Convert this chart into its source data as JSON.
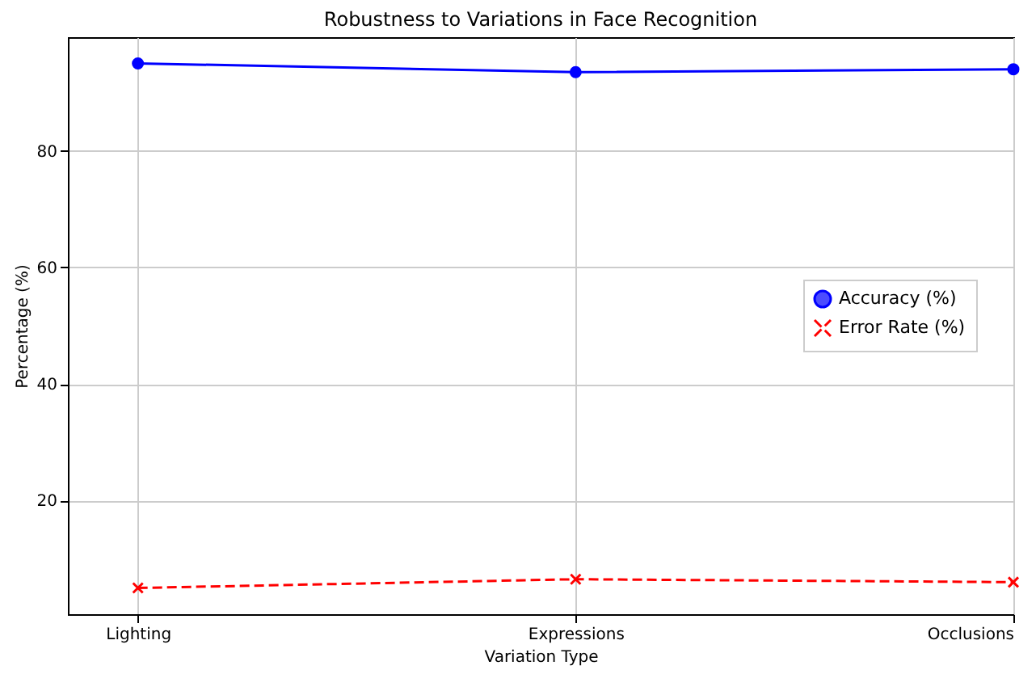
{
  "chart_data": {
    "type": "line",
    "title": "Robustness to Variations in Face Recognition",
    "xlabel": "Variation Type",
    "ylabel": "Percentage (%)",
    "categories": [
      "Lighting",
      "Expressions",
      "Occlusions"
    ],
    "series": [
      {
        "name": "Accuracy (%)",
        "color": "#0000ff",
        "values": [
          95,
          93.5,
          94
        ],
        "marker": "circle",
        "line_style": "solid"
      },
      {
        "name": "Error Rate (%)",
        "color": "#ff0000",
        "values": [
          5,
          6.5,
          6
        ],
        "marker": "cross",
        "line_style": "dashed"
      }
    ],
    "ylim": [
      0.5,
      99.5
    ],
    "yticks": [
      20,
      40,
      60,
      80
    ],
    "grid": true,
    "legend": "right"
  }
}
